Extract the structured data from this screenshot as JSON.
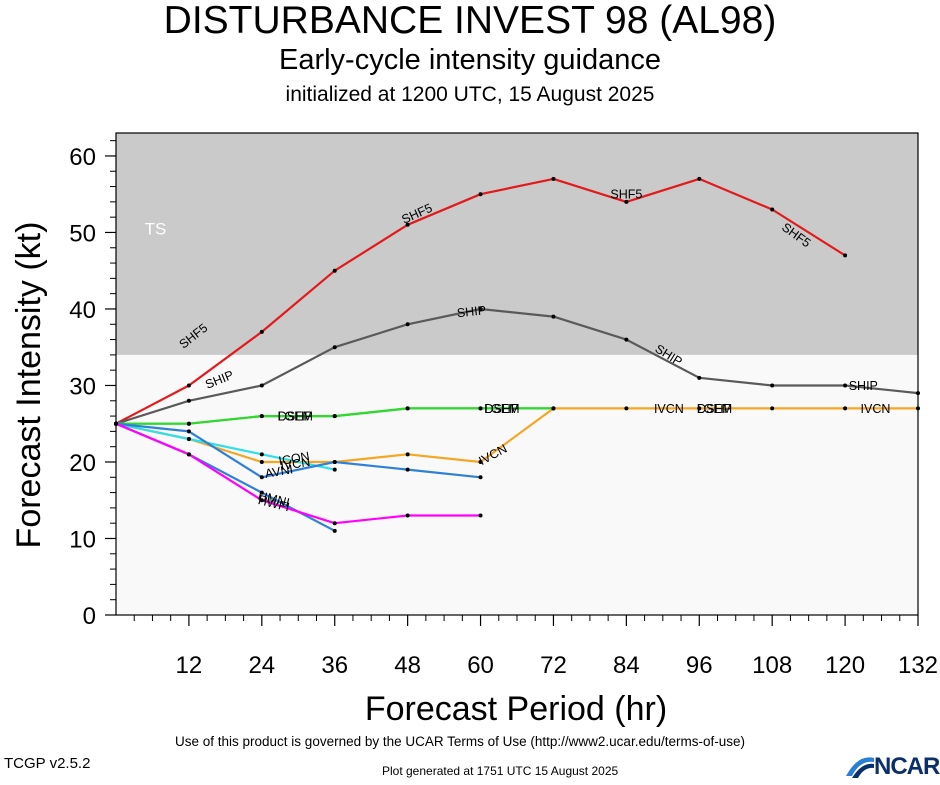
{
  "chart_data": {
    "type": "line",
    "title": "DISTURBANCE INVEST 98 (AL98)",
    "subtitle": "Early-cycle intensity guidance",
    "subtitle2": "initialized at 1200 UTC, 15 August 2025",
    "xlabel": "Forecast Period (hr)",
    "ylabel": "Forecast Intensity (kt)",
    "xlim": [
      0,
      132
    ],
    "ylim": [
      0,
      63
    ],
    "xticks": [
      12,
      24,
      36,
      48,
      60,
      72,
      84,
      96,
      108,
      120,
      132
    ],
    "yticks": [
      0,
      10,
      20,
      30,
      40,
      50,
      60
    ],
    "grid": false,
    "bands": [
      {
        "label": "TS",
        "y_from": 34,
        "y_to": 63,
        "color": "#cacaca"
      }
    ],
    "series": [
      {
        "name": "SHF5",
        "color": "#e31a1c",
        "x": [
          0,
          12,
          24,
          36,
          48,
          60,
          72,
          84,
          96,
          108,
          120
        ],
        "y": [
          25,
          30,
          37,
          45,
          51,
          55,
          57,
          54,
          57,
          53,
          47
        ]
      },
      {
        "name": "SHIP",
        "color": "#5a5a5a",
        "x": [
          0,
          12,
          24,
          36,
          48,
          60,
          72,
          84,
          96,
          108,
          120,
          132
        ],
        "y": [
          25,
          28,
          30,
          35,
          38,
          40,
          39,
          36,
          31,
          30,
          30,
          29
        ]
      },
      {
        "name": "DSHP",
        "color": "#32d732",
        "x": [
          0,
          12,
          24,
          36,
          48,
          60,
          72
        ],
        "y": [
          25,
          25,
          26,
          26,
          27,
          27,
          27
        ]
      },
      {
        "name": "LGEM",
        "color": "#32d732",
        "x": [
          0,
          12,
          24,
          36,
          48,
          60,
          72
        ],
        "y": [
          25,
          25,
          26,
          26,
          27,
          27,
          27
        ]
      },
      {
        "name": "IVCN",
        "color": "#f5a623",
        "x": [
          0,
          12,
          24,
          36,
          48,
          60,
          72,
          84,
          96,
          108,
          120,
          132
        ],
        "y": [
          25,
          23,
          20,
          20,
          21,
          20,
          27,
          27,
          27,
          27,
          27,
          27
        ]
      },
      {
        "name": "ICON",
        "color": "#2fe0e8",
        "x": [
          0,
          12,
          24,
          36
        ],
        "y": [
          25,
          23,
          21,
          19
        ]
      },
      {
        "name": "AVNI",
        "color": "#2f80d8",
        "x": [
          0,
          12,
          24,
          36,
          48,
          60
        ],
        "y": [
          25,
          24,
          18,
          20,
          19,
          18
        ]
      },
      {
        "name": "HWFI",
        "color": "#2f80d8",
        "x": [
          0,
          12,
          24,
          36
        ],
        "y": [
          25,
          21,
          16,
          11
        ]
      },
      {
        "name": "HMNI",
        "color": "#ff00ff",
        "x": [
          0,
          12,
          24,
          36,
          48,
          60
        ],
        "y": [
          25,
          21,
          15,
          12,
          13,
          13
        ]
      }
    ],
    "annotations": [
      {
        "text": "SHF5",
        "x": 12.7,
        "y": 36.5,
        "angle": -38
      },
      {
        "text": "SHF5",
        "x": 49.5,
        "y": 52.5,
        "angle": -24
      },
      {
        "text": "SHF5",
        "x": 84,
        "y": 55,
        "angle": 0
      },
      {
        "text": "SHF5",
        "x": 112,
        "y": 49.7,
        "angle": 36
      },
      {
        "text": "SHIP",
        "x": 17,
        "y": 30.8,
        "angle": -22
      },
      {
        "text": "SHIP",
        "x": 58.5,
        "y": 39.7,
        "angle": -6
      },
      {
        "text": "SHIP",
        "x": 91,
        "y": 34,
        "angle": 32
      },
      {
        "text": "SHIP",
        "x": 123,
        "y": 30,
        "angle": 0
      },
      {
        "text": "DSHP",
        "x": 29.5,
        "y": 26,
        "angle": 0
      },
      {
        "text": "LGEM",
        "x": 29.5,
        "y": 26,
        "angle": 0
      },
      {
        "text": "DSHP",
        "x": 63.5,
        "y": 27,
        "angle": 0
      },
      {
        "text": "LGEM",
        "x": 63.5,
        "y": 27,
        "angle": 0
      },
      {
        "text": "IVCN",
        "x": 91,
        "y": 27,
        "angle": 0
      },
      {
        "text": "DSHP",
        "x": 98.5,
        "y": 27,
        "angle": 0
      },
      {
        "text": "LGEM",
        "x": 98.5,
        "y": 27,
        "angle": 0
      },
      {
        "text": "IVCN",
        "x": 125,
        "y": 27,
        "angle": 0
      },
      {
        "text": "IVCN",
        "x": 29.5,
        "y": 19.8,
        "angle": -8
      },
      {
        "text": "ICON",
        "x": 29.3,
        "y": 20.5,
        "angle": -10
      },
      {
        "text": "AVNI",
        "x": 26.8,
        "y": 18.8,
        "angle": -10
      },
      {
        "text": "IVCN",
        "x": 62,
        "y": 21,
        "angle": -28
      },
      {
        "text": "HMNI",
        "x": 26,
        "y": 15.2,
        "angle": 14
      },
      {
        "text": "HWFI",
        "x": 26,
        "y": 14.6,
        "angle": 14
      }
    ]
  },
  "footer": {
    "terms": "Use of this product is governed by the UCAR Terms of Use (http://www2.ucar.edu/terms-of-use)",
    "version": "TCGP v2.5.2",
    "generated": "Plot generated at 1751 UTC   15 August 2025",
    "logo_text": "NCAR"
  }
}
